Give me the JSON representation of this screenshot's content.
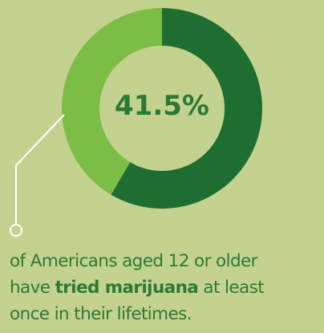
{
  "chart_data": {
    "type": "pie",
    "subtype": "donut",
    "center_label": "41.5%",
    "slices": [
      {
        "label": "tried marijuana",
        "value": 41.5,
        "color": "#7bbd45"
      },
      {
        "label": "",
        "value": 58.5,
        "color": "#1f6e31"
      }
    ]
  },
  "caption": {
    "line1": "of Americans aged 12 or older",
    "line2_pre": "have ",
    "line2_bold": "tried marijuana",
    "line2_post": " at least",
    "line3": "once in their lifetimes."
  },
  "colors": {
    "background": "#c3d28e",
    "accent_dark": "#1f6e31",
    "accent_light": "#7bbd45",
    "text": "#2d7a35"
  }
}
